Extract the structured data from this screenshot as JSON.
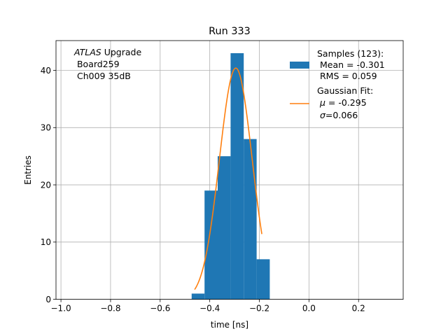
{
  "chart_data": {
    "type": "bar",
    "title": "Run 333",
    "xlabel": "time [ns]",
    "ylabel": "Entries",
    "xlim": [
      -1.02,
      0.38
    ],
    "ylim": [
      0,
      45.2
    ],
    "grid": true,
    "xticks": [
      -1.0,
      -0.8,
      -0.6,
      -0.4,
      -0.2,
      0.0,
      0.2
    ],
    "xtick_labels": [
      "−1.0",
      "−0.8",
      "−0.6",
      "−0.4",
      "−0.2",
      "0.0",
      "0.2"
    ],
    "yticks": [
      0,
      10,
      20,
      30,
      40
    ],
    "ytick_labels": [
      "0",
      "10",
      "20",
      "30",
      "40"
    ],
    "histogram": {
      "bin_edges": [
        -0.473,
        -0.421,
        -0.368,
        -0.316,
        -0.263,
        -0.211,
        -0.158
      ],
      "counts": [
        1,
        19,
        25,
        43,
        28,
        7
      ],
      "color": "#1f77b4"
    },
    "fit_curve": {
      "x_range": [
        -0.461,
        -0.19
      ],
      "mu": -0.295,
      "sigma": 0.066,
      "amplitude": 40.4,
      "color": "#ff7f0e"
    },
    "annotation": {
      "line1_italic": "ATLAS",
      "line1_rest": " Upgrade",
      "line2": " Board259",
      "line3": " Ch009 35dB"
    },
    "legend": {
      "placement": "top-right",
      "samples_title": "Samples (123):",
      "samples_mean": " Mean = -0.301",
      "samples_rms": " RMS = 0.059",
      "fit_title": "Gaussian Fit:",
      "fit_mu_symbol": "μ",
      "fit_mu_value": " = -0.295",
      "fit_sigma_symbol": "σ",
      "fit_sigma_value": "=0.066"
    }
  }
}
